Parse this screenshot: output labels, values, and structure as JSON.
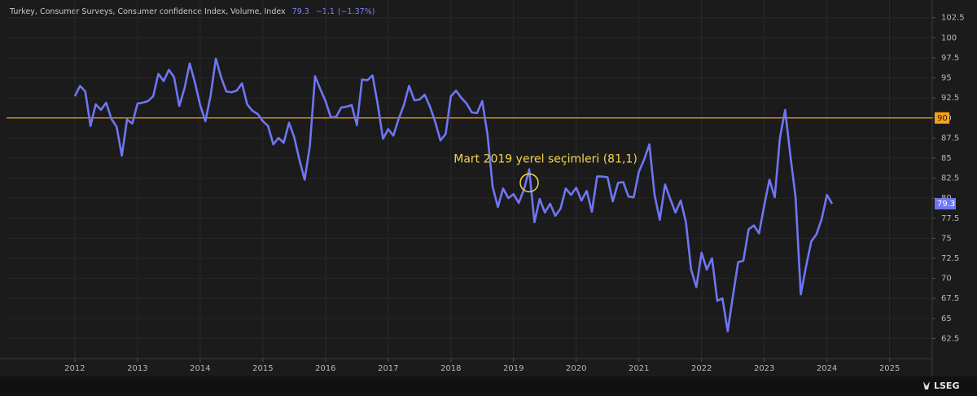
{
  "chart_data": {
    "type": "line",
    "title": "Turkey, Consumer Surveys, Consumer confidence Index, Volume, Index",
    "change": "−1.1",
    "change_pct": "(−1.37%)",
    "color": "#6e76f2",
    "x": [
      2012.0,
      2012.083,
      2012.167,
      2012.25,
      2012.333,
      2012.417,
      2012.5,
      2012.583,
      2012.667,
      2012.75,
      2012.833,
      2012.917,
      2013.0,
      2013.083,
      2013.167,
      2013.25,
      2013.333,
      2013.417,
      2013.5,
      2013.583,
      2013.667,
      2013.75,
      2013.833,
      2013.917,
      2014.0,
      2014.083,
      2014.167,
      2014.25,
      2014.333,
      2014.417,
      2014.5,
      2014.583,
      2014.667,
      2014.75,
      2014.833,
      2014.917,
      2015.0,
      2015.083,
      2015.167,
      2015.25,
      2015.333,
      2015.417,
      2015.5,
      2015.583,
      2015.667,
      2015.75,
      2015.833,
      2015.917,
      2016.0,
      2016.083,
      2016.167,
      2016.25,
      2016.333,
      2016.417,
      2016.5,
      2016.583,
      2016.667,
      2016.75,
      2016.833,
      2016.917,
      2017.0,
      2017.083,
      2017.167,
      2017.25,
      2017.333,
      2017.417,
      2017.5,
      2017.583,
      2017.667,
      2017.75,
      2017.833,
      2017.917,
      2018.0,
      2018.083,
      2018.167,
      2018.25,
      2018.333,
      2018.417,
      2018.5,
      2018.583,
      2018.667,
      2018.75,
      2018.833,
      2018.917,
      2019.0,
      2019.083,
      2019.167,
      2019.25,
      2019.333,
      2019.417,
      2019.5,
      2019.583,
      2019.667,
      2019.75,
      2019.833,
      2019.917,
      2020.0,
      2020.083,
      2020.167,
      2020.25,
      2020.333,
      2020.417,
      2020.5,
      2020.583,
      2020.667,
      2020.75,
      2020.833,
      2020.917,
      2021.0,
      2021.083,
      2021.167,
      2021.25,
      2021.333,
      2021.417,
      2021.5,
      2021.583,
      2021.667,
      2021.75,
      2021.833,
      2021.917,
      2022.0,
      2022.083,
      2022.167,
      2022.25,
      2022.333,
      2022.417,
      2022.5,
      2022.583,
      2022.667,
      2022.75,
      2022.833,
      2022.917,
      2023.0,
      2023.083,
      2023.167,
      2023.25,
      2023.333,
      2023.417,
      2023.5,
      2023.583,
      2023.667,
      2023.75,
      2023.833,
      2023.917,
      2024.0,
      2024.083
    ],
    "values": [
      92.7,
      94.0,
      93.3,
      89.0,
      91.7,
      91.0,
      91.9,
      89.9,
      88.9,
      85.3,
      89.8,
      89.3,
      91.8,
      91.9,
      92.1,
      92.7,
      95.5,
      94.6,
      96.0,
      95.1,
      91.5,
      93.7,
      96.8,
      94.4,
      91.6,
      89.6,
      92.8,
      97.4,
      95.1,
      93.3,
      93.2,
      93.4,
      94.3,
      91.7,
      90.9,
      90.5,
      89.6,
      89.0,
      86.7,
      87.5,
      86.9,
      89.4,
      87.6,
      84.8,
      82.3,
      86.5,
      95.2,
      93.6,
      92.1,
      90.1,
      90.1,
      91.3,
      91.4,
      91.6,
      89.1,
      94.8,
      94.7,
      95.3,
      91.7,
      87.4,
      88.6,
      87.8,
      89.9,
      91.6,
      94.0,
      92.2,
      92.3,
      92.9,
      91.4,
      89.5,
      87.2,
      88.0,
      92.7,
      93.4,
      92.5,
      91.8,
      90.7,
      90.6,
      92.1,
      88.0,
      81.4,
      78.9,
      81.2,
      80.0,
      80.5,
      79.4,
      81.1,
      83.6,
      77.0,
      79.9,
      78.2,
      79.3,
      77.8,
      78.7,
      81.2,
      80.4,
      81.3,
      79.7,
      80.9,
      78.3,
      82.7,
      82.7,
      82.6,
      79.6,
      81.9,
      82.0,
      80.2,
      80.1,
      83.3,
      84.8,
      86.7,
      80.4,
      77.3,
      81.7,
      79.9,
      78.2,
      79.7,
      77.0,
      71.1,
      68.9,
      73.2,
      71.1,
      72.5,
      67.2,
      67.5,
      63.4,
      67.8,
      72.0,
      72.2,
      76.1,
      76.6,
      75.6,
      79.1,
      82.3,
      80.1,
      87.5,
      91.0,
      85.3,
      80.1,
      68.0,
      71.5,
      74.6,
      75.5,
      77.4,
      80.4,
      79.3
    ],
    "xlim": [
      2010.91,
      2025.68
    ],
    "xticks": [
      2012,
      2013,
      2014,
      2015,
      2016,
      2017,
      2018,
      2019,
      2020,
      2021,
      2022,
      2023,
      2024,
      2025
    ],
    "ylim": [
      60,
      104.2
    ],
    "yticks": [
      62.5,
      65,
      67.5,
      70,
      72.5,
      75,
      77.5,
      80,
      82.5,
      85,
      87.5,
      90,
      92.5,
      95,
      97.5,
      100,
      102.5
    ],
    "grid": true,
    "reference_line": {
      "value": 90,
      "color": "#f7a21b"
    },
    "annotation": {
      "text": "Mart 2019 yerel seçimleri (81,1)",
      "x": 2019.25,
      "y": 81.1,
      "color": "#f2d64b"
    },
    "source": "LSEG"
  }
}
